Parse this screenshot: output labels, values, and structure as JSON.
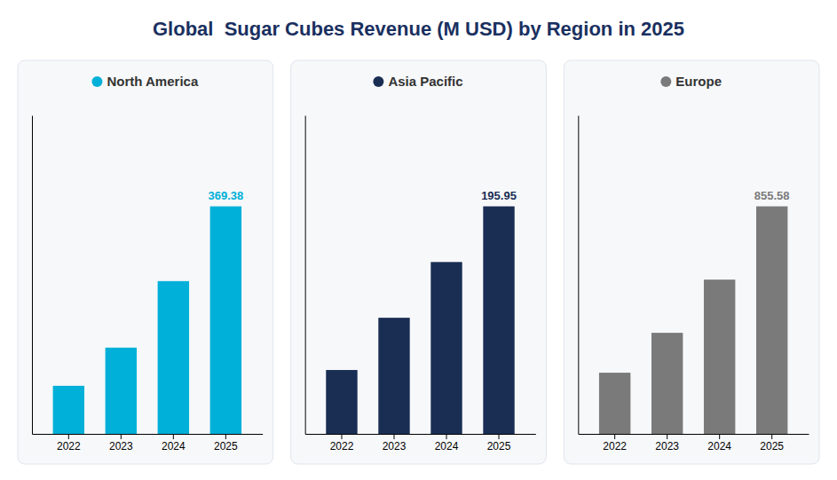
{
  "chart_data": [
    {
      "type": "bar",
      "title": "Global  Sugar Cubes Revenue (M USD) by Region in 2025",
      "categories": [
        "2022",
        "2023",
        "2024",
        "2025"
      ],
      "series": [
        {
          "name": "North America",
          "color": "#00b0d8",
          "values": [
            78,
            140,
            248,
            369.38
          ]
        }
      ],
      "ylim": [
        0,
        517.132
      ],
      "tick_labels": "x",
      "annotations": [
        {
          "text": "369.38",
          "x": "2025",
          "y": 369.38
        }
      ]
    },
    {
      "type": "bar",
      "categories": [
        "2022",
        "2023",
        "2024",
        "2025"
      ],
      "series": [
        {
          "name": "Asia Pacific",
          "color": "#1a2e54",
          "values": [
            55,
            100,
            148,
            195.95
          ]
        }
      ],
      "ylim": [
        0,
        274.33
      ],
      "tick_labels": "x",
      "annotations": [
        {
          "text": "195.95",
          "x": "2025",
          "y": 195.95
        }
      ]
    },
    {
      "type": "bar",
      "categories": [
        "2022",
        "2023",
        "2024",
        "2025"
      ],
      "series": [
        {
          "name": "Europe",
          "color": "#7a7a7a",
          "values": [
            230,
            380,
            580,
            855.58
          ]
        }
      ],
      "ylim": [
        0,
        1197.812
      ],
      "tick_labels": "x",
      "annotations": [
        {
          "text": "855.58",
          "x": "2025",
          "y": 855.58
        }
      ]
    }
  ]
}
